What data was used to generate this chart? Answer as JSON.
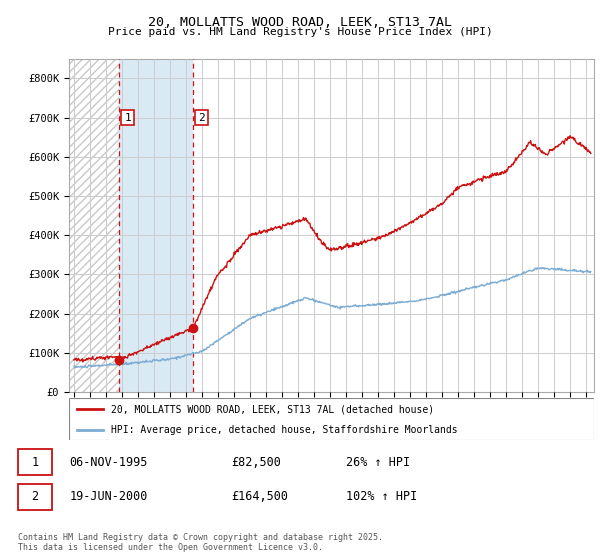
{
  "title1": "20, MOLLATTS WOOD ROAD, LEEK, ST13 7AL",
  "title2": "Price paid vs. HM Land Registry's House Price Index (HPI)",
  "ylabel_ticks": [
    "£0",
    "£100K",
    "£200K",
    "£300K",
    "£400K",
    "£500K",
    "£600K",
    "£700K",
    "£800K"
  ],
  "ytick_values": [
    0,
    100000,
    200000,
    300000,
    400000,
    500000,
    600000,
    700000,
    800000
  ],
  "ylim": [
    0,
    850000
  ],
  "xlim_start": 1992.7,
  "xlim_end": 2025.5,
  "sale1_year": 1995,
  "sale1_date": 1995.85,
  "sale1_price": 82500,
  "sale2_date": 2000.47,
  "sale2_price": 164500,
  "legend_line1": "20, MOLLATTS WOOD ROAD, LEEK, ST13 7AL (detached house)",
  "legend_line2": "HPI: Average price, detached house, Staffordshire Moorlands",
  "annotation1_date": "06-NOV-1995",
  "annotation1_price": "£82,500",
  "annotation1_hpi": "26% ↑ HPI",
  "annotation2_date": "19-JUN-2000",
  "annotation2_price": "£164,500",
  "annotation2_hpi": "102% ↑ HPI",
  "footer": "Contains HM Land Registry data © Crown copyright and database right 2025.\nThis data is licensed under the Open Government Licence v3.0.",
  "hpi_color": "#7dadd4",
  "price_color": "#cc1111",
  "sale_vline_color": "#cc1111",
  "hatch_color": "#c8c8c8",
  "fill_between_color": "#daeaf5",
  "grid_color": "#cccccc",
  "label_box_color": "#cc1111"
}
